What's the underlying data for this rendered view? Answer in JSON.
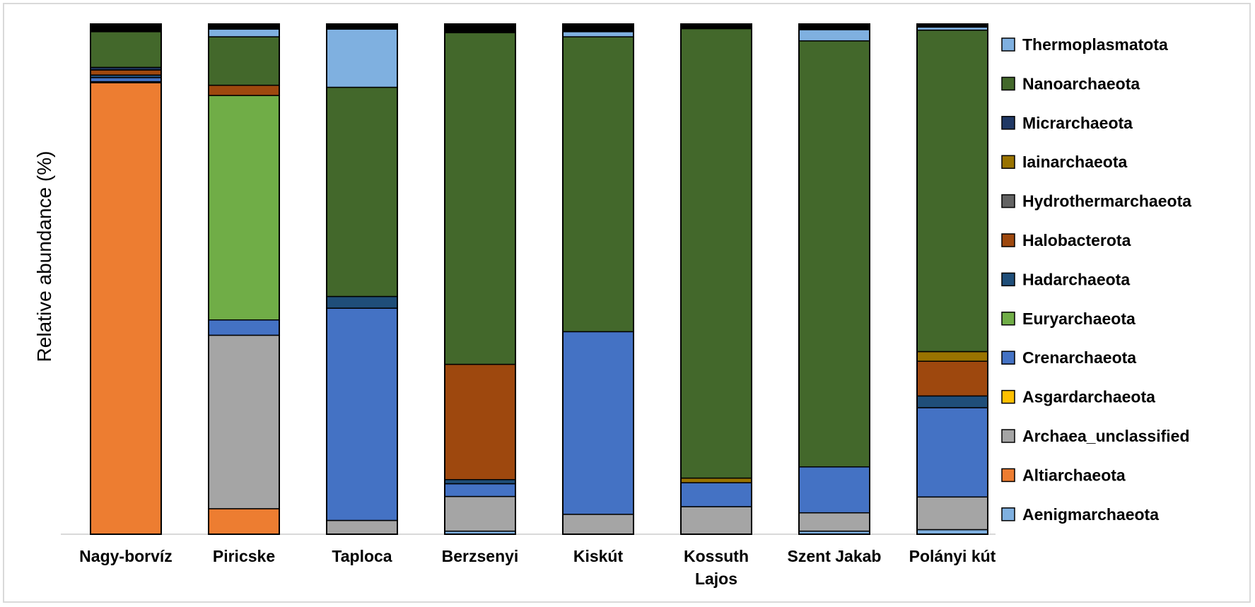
{
  "chart_data": {
    "type": "stacked-bar",
    "ylabel": "Relative abundance (%)",
    "ylim": [
      0,
      100
    ],
    "grid": false,
    "legend_position": "right",
    "categories": [
      "Nagy-borvíz",
      "Piricske",
      "Taploca",
      "Berzsenyi",
      "Kiskút",
      "Kossuth Lajos",
      "Szent Jakab",
      "Polányi kút"
    ],
    "series": [
      {
        "name": "Aenigmarchaeota",
        "color": "#7fb0e0",
        "values": [
          0,
          0,
          0,
          0.6,
          0,
          0,
          0.6,
          0.9
        ]
      },
      {
        "name": "Altiarchaeota",
        "color": "#ed7d31",
        "values": [
          88.5,
          5.0,
          0,
          0,
          0,
          0,
          0,
          0
        ]
      },
      {
        "name": "Archaea_unclassified",
        "color": "#a5a5a5",
        "values": [
          0.2,
          34.0,
          2.7,
          6.8,
          3.9,
          5.4,
          3.6,
          6.4
        ]
      },
      {
        "name": "Asgardarchaeota",
        "color": "#ffc000",
        "values": [
          0,
          0,
          0,
          0,
          0,
          0,
          0,
          0
        ]
      },
      {
        "name": "Crenarchaeota",
        "color": "#4472c4",
        "values": [
          0.8,
          3.0,
          41.6,
          2.5,
          35.8,
          4.7,
          9.0,
          17.5
        ]
      },
      {
        "name": "Euryarchaeota",
        "color": "#70ad47",
        "values": [
          0,
          44.0,
          0,
          0,
          0,
          0,
          0,
          0
        ]
      },
      {
        "name": "Hadarchaeota",
        "color": "#1f4e79",
        "values": [
          0.5,
          0,
          2.3,
          0.8,
          0,
          0,
          0,
          2.3
        ]
      },
      {
        "name": "Halobacterota",
        "color": "#9e480e",
        "values": [
          1.0,
          2.0,
          0,
          22.6,
          0,
          0,
          0,
          6.8
        ]
      },
      {
        "name": "Hydrothermarchaeota",
        "color": "#636363",
        "values": [
          0,
          0,
          0,
          0,
          0,
          0,
          0,
          0
        ]
      },
      {
        "name": "Iainarchaeota",
        "color": "#997300",
        "values": [
          0,
          0,
          0,
          0,
          0,
          0.9,
          0,
          1.9
        ]
      },
      {
        "name": "Micrarchaeota",
        "color": "#203864",
        "values": [
          0.5,
          0,
          0,
          0,
          0,
          0,
          0,
          0
        ]
      },
      {
        "name": "Nanoarchaeota",
        "color": "#43682b",
        "values": [
          7.0,
          9.5,
          41.0,
          65.0,
          57.8,
          88.1,
          83.5,
          63.0
        ]
      },
      {
        "name": "Thermoplasmatota",
        "color": "#7fb0e0",
        "values": [
          0.2,
          1.5,
          11.4,
          0,
          1.0,
          0,
          2.2,
          0.6
        ]
      },
      {
        "name": "",
        "color": "#000000",
        "values": [
          1.3,
          1.0,
          1.0,
          1.7,
          1.5,
          0.9,
          1.1,
          0.6
        ]
      }
    ]
  }
}
